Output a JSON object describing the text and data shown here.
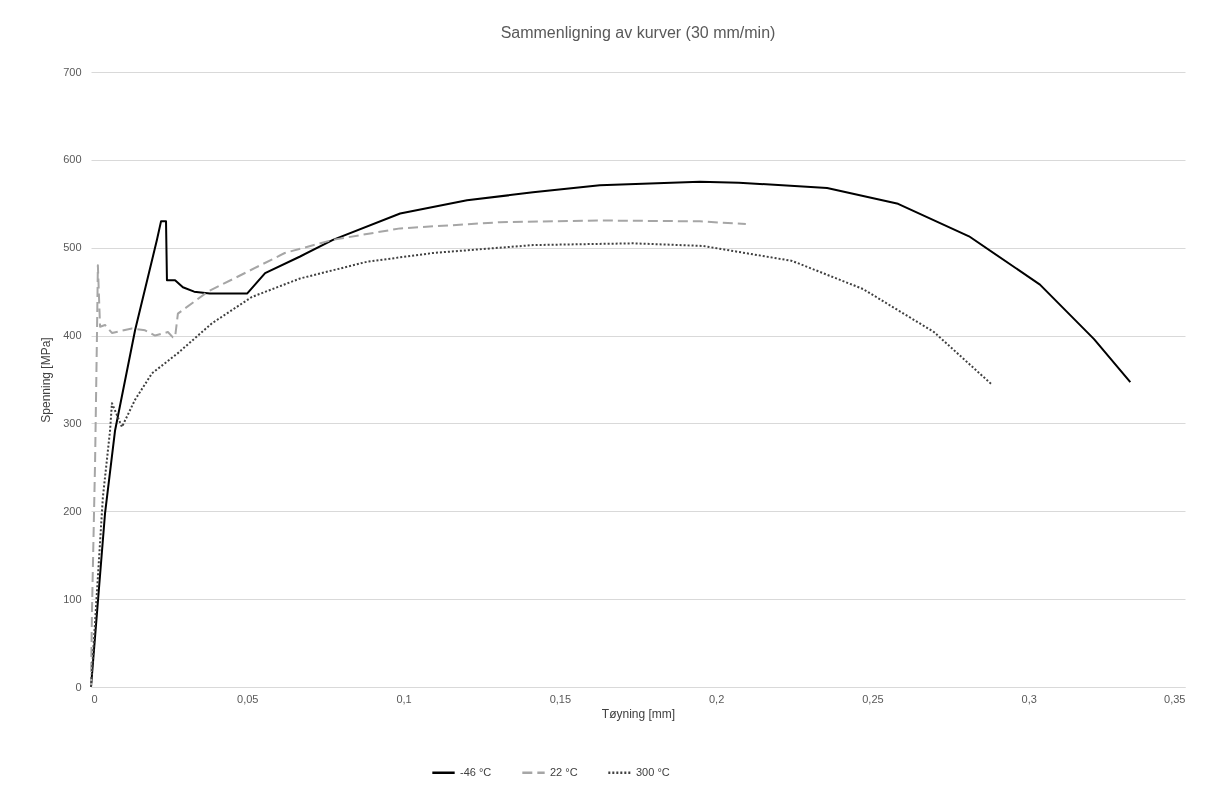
{
  "chart_data": {
    "type": "line",
    "title": "Sammenligning av kurver (30 mm/min)",
    "xlabel": "Tøyning [mm]",
    "ylabel": "Spenning [MPa]",
    "xlim": [
      0,
      0.35
    ],
    "xticks": [
      0,
      {
        "value": 0.05,
        "label": "0,05"
      },
      {
        "value": 0.1,
        "label": "0,1"
      },
      {
        "value": 0.15,
        "label": "0,15"
      },
      {
        "value": 0.2,
        "label": "0,2"
      },
      {
        "value": 0.25,
        "label": "0,25"
      },
      {
        "value": 0.3,
        "label": "0,3"
      },
      {
        "value": 0.35,
        "label": "0,35"
      }
    ],
    "ylim": [
      0,
      700
    ],
    "yticks": [
      0,
      100,
      200,
      300,
      400,
      500,
      600,
      700
    ],
    "grid": "y",
    "legend": "bottom",
    "series": [
      {
        "name": "-46 °C",
        "color": "#000000",
        "line_style": "solid",
        "x": [
          0,
          0.0045,
          0.0077,
          0.0141,
          0.0211,
          0.0224,
          0.024,
          0.0243,
          0.0269,
          0.0294,
          0.033,
          0.038,
          0.05,
          0.0557,
          0.0669,
          0.0774,
          0.0989,
          0.1203,
          0.1414,
          0.1628,
          0.1948,
          0.2073,
          0.2355,
          0.2582,
          0.2809,
          0.3036,
          0.3209,
          0.3325
        ],
        "values": [
          0,
          198,
          292,
          406,
          509,
          530,
          530,
          463,
          463,
          455,
          450,
          448,
          448,
          471,
          490,
          509,
          539,
          554,
          563,
          571,
          575,
          574,
          568,
          550,
          513,
          458,
          396,
          347
        ]
      },
      {
        "name": "22 °C",
        "color": "#a6a6a6",
        "line_style": "dashed",
        "x": [
          0,
          0.0003,
          0.0013,
          0.0019,
          0.0022,
          0.0029,
          0.0045,
          0.0067,
          0.0131,
          0.0173,
          0.0205,
          0.0246,
          0.0262,
          0.0269,
          0.0278,
          0.0374,
          0.062,
          0.0774,
          0.0989,
          0.1308,
          0.1628,
          0.1948,
          0.2095
        ],
        "values": [
          0,
          84,
          255,
          398,
          480,
          410,
          412,
          403,
          408,
          406,
          400,
          404,
          398,
          398,
          425,
          450,
          494,
          509,
          522,
          529,
          531,
          530,
          527
        ]
      },
      {
        "name": "300 °C",
        "color": "#404040",
        "line_style": "dotted",
        "x": [
          0,
          0.0038,
          0.0061,
          0.0067,
          0.0099,
          0.0141,
          0.0195,
          0.0278,
          0.0387,
          0.0515,
          0.0669,
          0.0883,
          0.1094,
          0.1414,
          0.1734,
          0.1958,
          0.2243,
          0.247,
          0.2697,
          0.2883
        ],
        "values": [
          0,
          216,
          292,
          323,
          296,
          327,
          357,
          380,
          414,
          444,
          465,
          484,
          494,
          503,
          505,
          502,
          485,
          453,
          404,
          344
        ]
      }
    ]
  }
}
